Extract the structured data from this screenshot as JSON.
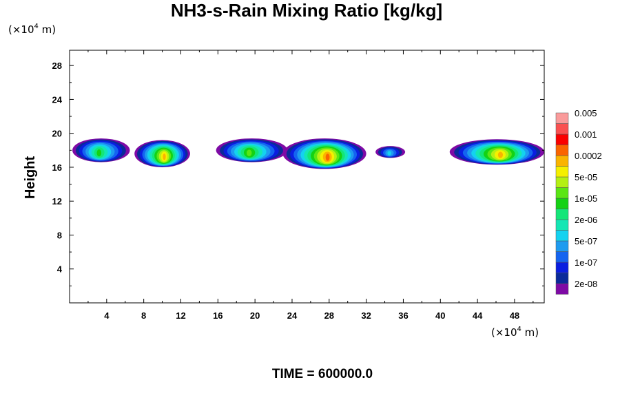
{
  "chart_data": {
    "type": "heatmap",
    "title": "NH3-s-Rain Mixing Ratio [kg/kg]",
    "ylabel": "Height",
    "xunit": {
      "prefix": "(×10",
      "exp": "4",
      "suffix": " m)"
    },
    "yunit": {
      "prefix": "(×10",
      "exp": "4",
      "suffix": " m)"
    },
    "xlim": [
      0,
      51.2
    ],
    "ylim": [
      0,
      29.8
    ],
    "xticks": [
      "4",
      "8",
      "12",
      "16",
      "20",
      "24",
      "28",
      "32",
      "36",
      "40",
      "44",
      "48"
    ],
    "xtick_values": [
      4,
      8,
      12,
      16,
      20,
      24,
      28,
      32,
      36,
      40,
      44,
      48
    ],
    "yticks": [
      "4",
      "8",
      "12",
      "16",
      "20",
      "24",
      "28"
    ],
    "ytick_values": [
      4,
      8,
      12,
      16,
      20,
      24,
      28
    ],
    "colorbar": {
      "colors": [
        "#7e0aa5",
        "#0a2a9a",
        "#0a1ee0",
        "#1464f0",
        "#1e9bf0",
        "#14d2f0",
        "#14e6b4",
        "#14e678",
        "#14d214",
        "#5ae614",
        "#b4f014",
        "#f5f000",
        "#fab400",
        "#fa6400",
        "#fa0000",
        "#fa5050",
        "#fa9b9b"
      ],
      "labels": [
        "2e-08",
        "1e-07",
        "5e-07",
        "2e-06",
        "1e-05",
        "5e-05",
        "0.0002",
        "0.001",
        "0.005"
      ],
      "label_levels": [
        1,
        3,
        5,
        7,
        9,
        11,
        13,
        15,
        17
      ]
    },
    "clouds": [
      {
        "x0": 0.3,
        "x1": 6.5,
        "y_center": 18.0,
        "half_thickness": 1.4,
        "peak_level": 9
      },
      {
        "x0": 7.0,
        "x1": 13.0,
        "y_center": 17.6,
        "half_thickness": 1.6,
        "peak_level": 13
      },
      {
        "x0": 15.8,
        "x1": 23.5,
        "y_center": 18.0,
        "half_thickness": 1.4,
        "peak_level": 10
      },
      {
        "x0": 23.0,
        "x1": 32.0,
        "y_center": 17.6,
        "half_thickness": 1.8,
        "peak_level": 14
      },
      {
        "x0": 33.0,
        "x1": 36.2,
        "y_center": 17.8,
        "half_thickness": 0.7,
        "peak_level": 6
      },
      {
        "x0": 41.0,
        "x1": 51.2,
        "y_center": 17.8,
        "half_thickness": 1.5,
        "peak_level": 13
      }
    ],
    "time_label": "TIME = 600000.0"
  }
}
